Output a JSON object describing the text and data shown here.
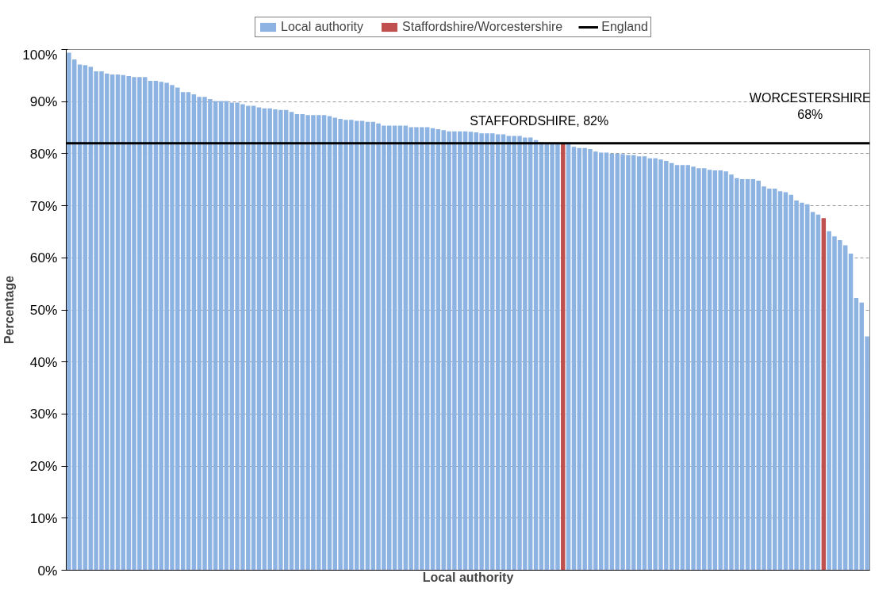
{
  "chart_data": {
    "type": "bar",
    "xlabel": "Local authority",
    "ylabel": "Percentage",
    "categories": [
      null,
      null,
      null,
      null,
      null,
      null,
      null,
      null,
      null,
      null,
      null,
      null,
      null,
      null,
      null,
      null,
      null,
      null,
      null,
      null,
      null,
      null,
      null,
      null,
      null,
      null,
      null,
      null,
      null,
      null,
      null,
      null,
      null,
      null,
      null,
      null,
      null,
      null,
      null,
      null,
      null,
      null,
      null,
      null,
      null,
      null,
      null,
      null,
      null,
      null,
      null,
      null,
      null,
      null,
      null,
      null,
      null,
      null,
      null,
      null,
      null,
      null,
      null,
      null,
      null,
      null,
      null,
      null,
      null,
      null,
      null,
      null,
      null,
      null,
      null,
      null,
      null,
      null,
      null,
      null,
      null,
      null,
      null,
      null,
      null,
      null,
      null,
      null,
      null,
      null,
      null,
      null,
      null,
      null,
      null,
      null,
      null,
      null,
      null,
      null,
      null,
      null,
      null,
      null,
      null,
      null,
      null,
      null,
      null,
      null,
      null,
      null,
      null,
      null,
      null,
      null,
      null,
      null,
      null,
      null,
      null,
      null,
      null,
      null,
      null,
      null,
      null,
      null,
      null,
      null,
      null,
      null,
      null,
      null,
      null,
      null,
      null,
      null,
      null,
      null,
      null,
      null,
      null,
      null,
      null,
      null,
      null,
      null
    ],
    "series": [
      {
        "name": "Local authority",
        "color": "#8db3e2",
        "values": [
          99.4,
          98.1,
          97.1,
          97.0,
          96.7,
          95.8,
          95.8,
          95.4,
          95.2,
          95.2,
          95.1,
          94.9,
          94.7,
          94.7,
          94.7,
          94.0,
          94.0,
          93.8,
          93.6,
          93.2,
          92.7,
          91.8,
          91.8,
          91.4,
          90.9,
          90.9,
          90.5,
          90.1,
          90.1,
          90.1,
          89.8,
          89.8,
          89.5,
          89.2,
          89.2,
          88.9,
          88.7,
          88.7,
          88.5,
          88.4,
          88.4,
          88.0,
          87.6,
          87.6,
          87.4,
          87.4,
          87.4,
          87.4,
          87.2,
          86.9,
          86.7,
          86.5,
          86.5,
          86.3,
          86.3,
          86.1,
          86.1,
          85.8,
          85.4,
          85.4,
          85.4,
          85.4,
          85.4,
          85.1,
          85.1,
          85.1,
          85.1,
          84.9,
          84.7,
          84.5,
          84.3,
          84.3,
          84.3,
          84.3,
          84.2,
          84.1,
          83.9,
          83.9,
          83.9,
          83.7,
          83.7,
          83.4,
          83.4,
          83.4,
          83.1,
          83.1,
          82.6,
          82.2,
          82.1,
          82.1,
          82.0,
          null,
          81.9,
          81.3,
          81.1,
          81.1,
          80.9,
          80.4,
          80.2,
          80.2,
          80.0,
          80.0,
          79.9,
          79.7,
          79.7,
          79.5,
          79.5,
          79.1,
          79.1,
          78.9,
          78.6,
          78.2,
          77.8,
          77.8,
          77.8,
          77.5,
          77.2,
          77.2,
          76.9,
          76.8,
          76.8,
          76.6,
          76.0,
          75.3,
          75.1,
          75.1,
          75.1,
          74.8,
          73.7,
          73.3,
          73.3,
          72.8,
          72.6,
          72.1,
          71.0,
          70.6,
          70.3,
          68.8,
          68.3,
          null,
          65.1,
          64.1,
          63.4,
          62.4,
          60.8,
          52.3,
          51.4,
          44.9
        ]
      },
      {
        "name": "Staffordshire/Worcestershire",
        "color": "#c0504d",
        "values": [
          null,
          null,
          null,
          null,
          null,
          null,
          null,
          null,
          null,
          null,
          null,
          null,
          null,
          null,
          null,
          null,
          null,
          null,
          null,
          null,
          null,
          null,
          null,
          null,
          null,
          null,
          null,
          null,
          null,
          null,
          null,
          null,
          null,
          null,
          null,
          null,
          null,
          null,
          null,
          null,
          null,
          null,
          null,
          null,
          null,
          null,
          null,
          null,
          null,
          null,
          null,
          null,
          null,
          null,
          null,
          null,
          null,
          null,
          null,
          null,
          null,
          null,
          null,
          null,
          null,
          null,
          null,
          null,
          null,
          null,
          null,
          null,
          null,
          null,
          null,
          null,
          null,
          null,
          null,
          null,
          null,
          null,
          null,
          null,
          null,
          null,
          null,
          null,
          null,
          null,
          null,
          82,
          null,
          null,
          null,
          null,
          null,
          null,
          null,
          null,
          null,
          null,
          null,
          null,
          null,
          null,
          null,
          null,
          null,
          null,
          null,
          null,
          null,
          null,
          null,
          null,
          null,
          null,
          null,
          null,
          null,
          null,
          null,
          null,
          null,
          null,
          null,
          null,
          null,
          null,
          null,
          null,
          null,
          null,
          null,
          null,
          null,
          null,
          null,
          67.6,
          null,
          null,
          null,
          null,
          null,
          null,
          null,
          null
        ]
      },
      {
        "name": "England",
        "type": "line",
        "color": "#000000",
        "values": [
          82,
          82,
          82,
          82,
          82,
          82,
          82,
          82,
          82,
          82,
          82,
          82,
          82,
          82,
          82,
          82,
          82,
          82,
          82,
          82,
          82,
          82,
          82,
          82,
          82,
          82,
          82,
          82,
          82,
          82,
          82,
          82,
          82,
          82,
          82,
          82,
          82,
          82,
          82,
          82,
          82,
          82,
          82,
          82,
          82,
          82,
          82,
          82,
          82,
          82,
          82,
          82,
          82,
          82,
          82,
          82,
          82,
          82,
          82,
          82,
          82,
          82,
          82,
          82,
          82,
          82,
          82,
          82,
          82,
          82,
          82,
          82,
          82,
          82,
          82,
          82,
          82,
          82,
          82,
          82,
          82,
          82,
          82,
          82,
          82,
          82,
          82,
          82,
          82,
          82,
          82,
          82,
          82,
          82,
          82,
          82,
          82,
          82,
          82,
          82,
          82,
          82,
          82,
          82,
          82,
          82,
          82,
          82,
          82,
          82,
          82,
          82,
          82,
          82,
          82,
          82,
          82,
          82,
          82,
          82,
          82,
          82,
          82,
          82,
          82,
          82,
          82,
          82,
          82,
          82,
          82,
          82,
          82,
          82,
          82,
          82,
          82,
          82,
          82,
          82,
          82,
          82,
          82,
          82,
          82,
          82,
          82,
          82
        ]
      }
    ],
    "annotations": [
      "STAFFORDSHIRE, 82%",
      "WORCESTERSHIRE\n68%"
    ],
    "ylim": [
      0,
      100
    ],
    "yticks": [
      {
        "value": 0,
        "label": "0%"
      },
      {
        "value": 10,
        "label": "10%"
      },
      {
        "value": 20,
        "label": "20%"
      },
      {
        "value": 30,
        "label": "30%"
      },
      {
        "value": 40,
        "label": "40%"
      },
      {
        "value": 50,
        "label": "50%"
      },
      {
        "value": 60,
        "label": "60%"
      },
      {
        "value": 70,
        "label": "70%"
      },
      {
        "value": 80,
        "label": "80%"
      },
      {
        "value": 90,
        "label": "90%"
      },
      {
        "value": 100,
        "label": "100%"
      }
    ],
    "grid": "y",
    "legend": "top"
  }
}
